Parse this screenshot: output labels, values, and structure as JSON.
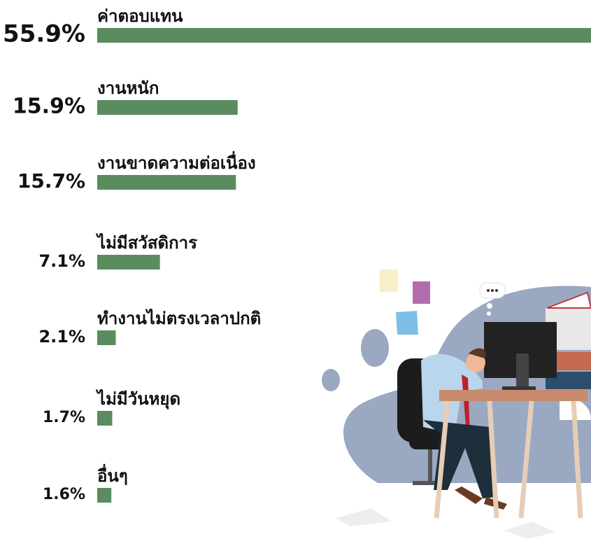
{
  "chart_data": {
    "type": "bar",
    "orientation": "horizontal",
    "color": "#5b8c5f",
    "categories": [
      "ค่าตอบแทน",
      "งานหนัก",
      "งานขาดความต่อเนื่อง",
      "ไม่มีสวัสดิการ",
      "ทำงานไม่ตรงเวลาปกติ",
      "ไม่มีวันหยุด",
      "อื่นๆ"
    ],
    "values": [
      55.9,
      15.9,
      15.7,
      7.1,
      2.1,
      1.7,
      1.6
    ],
    "value_labels": [
      "55.9%",
      "15.9%",
      "15.7%",
      "7.1%",
      "2.1%",
      "1.7%",
      "1.6%"
    ]
  }
}
